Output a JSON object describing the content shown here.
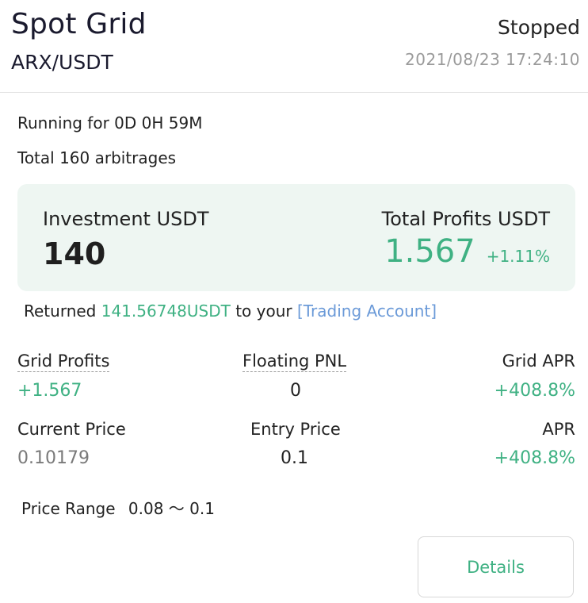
{
  "header": {
    "title": "Spot Grid",
    "pair": "ARX/USDT",
    "status": "Stopped",
    "timestamp": "2021/08/23 17:24:10"
  },
  "info": {
    "running": "Running for 0D 0H 59M",
    "arbitrages": "Total 160 arbitrages"
  },
  "summary": {
    "investment_label": "Investment USDT",
    "investment_value": "140",
    "profits_label": "Total Profits USDT",
    "profits_value": "1.567",
    "profits_pct": "+1.11%"
  },
  "returned": {
    "prefix": "Returned",
    "amount": "141.56748USDT",
    "middle": "to your",
    "link": "[Trading Account]"
  },
  "stats": {
    "grid_profits_label": "Grid Profits",
    "grid_profits_value": "+1.567",
    "floating_pnl_label": "Floating PNL",
    "floating_pnl_value": "0",
    "grid_apr_label": "Grid APR",
    "grid_apr_value": "+408.8%",
    "current_price_label": "Current Price",
    "current_price_value": "0.10179",
    "entry_price_label": "Entry Price",
    "entry_price_value": "0.1",
    "apr_label": "APR",
    "apr_value": "+408.8%"
  },
  "price_range": {
    "label": "Price Range",
    "value": "0.08 ～ 0.1"
  },
  "actions": {
    "details_label": "Details"
  },
  "colors": {
    "accent_green": "#3fb183",
    "link_blue": "#6b9ad8",
    "summary_bg": "#eef6f2"
  }
}
